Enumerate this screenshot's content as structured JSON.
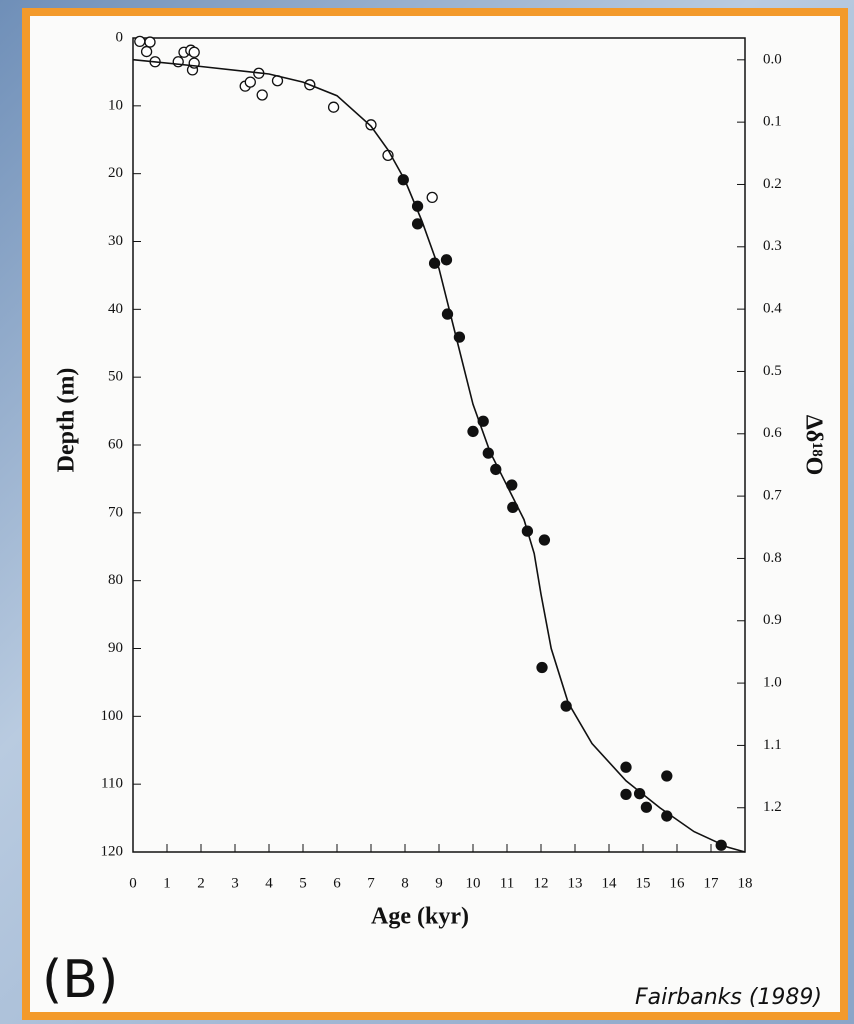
{
  "chart_data": {
    "type": "scatter",
    "xlabel": "Age (kyr)",
    "ylabel": "Depth (m)",
    "y2label": "Δδ¹⁸O",
    "xlim": [
      0,
      18
    ],
    "xticks": [
      0,
      1,
      2,
      3,
      4,
      5,
      6,
      7,
      8,
      9,
      10,
      11,
      12,
      13,
      14,
      15,
      16,
      17,
      18
    ],
    "ylim": [
      0,
      120
    ],
    "yticks": [
      0,
      10,
      20,
      30,
      40,
      50,
      60,
      70,
      80,
      90,
      100,
      110,
      120
    ],
    "y_inverted": true,
    "y2lim": [
      -0.035,
      1.271
    ],
    "y2ticks": [
      {
        "value": 0,
        "label": "0.0"
      },
      0.1,
      0.2,
      0.3,
      0.4,
      0.5,
      0.6,
      0.7,
      0.8,
      0.9,
      {
        "value": 1,
        "label": "1.0"
      },
      1.1,
      1.2
    ],
    "series": [
      {
        "marker": "open-circle",
        "color": "#111111",
        "x": [
          0.2,
          0.5,
          0.4,
          0.65,
          1.33,
          1.5,
          1.7,
          1.8,
          1.75,
          1.8,
          3.3,
          3.45,
          3.7,
          3.8,
          4.25,
          5.2,
          5.9,
          7.0,
          7.5,
          8.8
        ],
        "values": [
          0.5,
          0.6,
          2.0,
          3.5,
          3.5,
          2.1,
          1.8,
          2.1,
          4.7,
          3.7,
          7.1,
          6.5,
          5.2,
          8.4,
          6.3,
          6.9,
          10.2,
          12.8,
          17.3,
          23.5
        ]
      },
      {
        "marker": "filled-circle",
        "color": "#111111",
        "x": [
          7.95,
          8.37,
          8.37,
          8.87,
          9.22,
          9.25,
          9.6,
          10.0,
          10.3,
          10.45,
          10.67,
          11.14,
          11.17,
          11.6,
          12.1,
          12.03,
          12.74,
          14.5,
          14.5,
          14.9,
          15.1,
          15.7,
          15.7,
          17.3
        ],
        "values": [
          20.9,
          24.8,
          27.4,
          33.2,
          32.7,
          40.7,
          44.1,
          58,
          56.5,
          61.2,
          63.6,
          65.9,
          69.2,
          72.7,
          74,
          92.8,
          98.5,
          107.5,
          111.5,
          111.4,
          113.4,
          108.8,
          114.7,
          119
        ]
      },
      {
        "marker": "line",
        "color": "#111111",
        "x": [
          0,
          2,
          4,
          5,
          6,
          7,
          7.5,
          8,
          8.5,
          9,
          9.5,
          10,
          10.5,
          11,
          11.5,
          11.8,
          12,
          12.3,
          12.8,
          13.5,
          14.5,
          15.5,
          16.5,
          17.5,
          18
        ],
        "values": [
          3.2,
          4.2,
          5.3,
          6.5,
          8.5,
          13,
          16.5,
          21,
          27,
          34,
          44,
          54,
          61,
          66,
          71,
          76,
          82,
          90,
          98,
          104,
          109.5,
          113.5,
          117,
          119.3,
          120
        ]
      }
    ],
    "panel_label": "(B)",
    "source": "Fairbanks (1989)"
  }
}
